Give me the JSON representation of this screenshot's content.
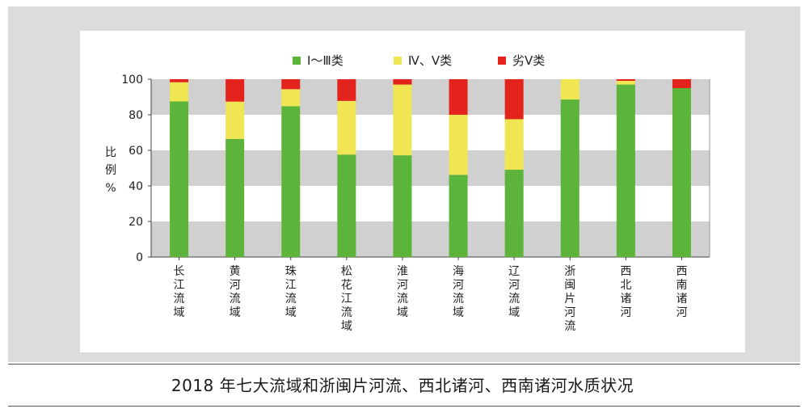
{
  "caption": "2018 年七大流域和浙闽片河流、西北诸河、西南诸河水质状况",
  "chart_data": {
    "type": "bar",
    "stacked": true,
    "categories": [
      "长江流域",
      "黄河流域",
      "珠江流域",
      "松花江流域",
      "淮河流域",
      "海河流域",
      "辽河流域",
      "浙闽片河流",
      "西北诸河",
      "西南诸河"
    ],
    "series": [
      {
        "name": "Ⅰ～Ⅲ类",
        "color": "#5cb53a",
        "values": [
          87.5,
          66.4,
          84.8,
          57.6,
          57.2,
          46.2,
          49.1,
          88.6,
          97.0,
          95.0
        ]
      },
      {
        "name": "Ⅳ、Ⅴ类",
        "color": "#f0e552",
        "values": [
          10.8,
          21.0,
          9.6,
          30.2,
          39.8,
          33.8,
          28.4,
          11.4,
          2.1,
          0.0
        ]
      },
      {
        "name": "劣Ⅴ类",
        "color": "#e3231c",
        "values": [
          1.7,
          12.6,
          5.6,
          12.2,
          3.0,
          20.0,
          22.5,
          0.0,
          0.9,
          5.0
        ]
      }
    ],
    "ylabel": "比例%",
    "ylabel_chars": [
      "比",
      "例",
      "%"
    ],
    "ylim": [
      0,
      100
    ],
    "yticks": [
      0,
      20,
      40,
      60,
      80,
      100
    ],
    "legend_position": "top-center",
    "grid_band_colors": [
      "#d0d0d0",
      "#ffffff"
    ]
  }
}
